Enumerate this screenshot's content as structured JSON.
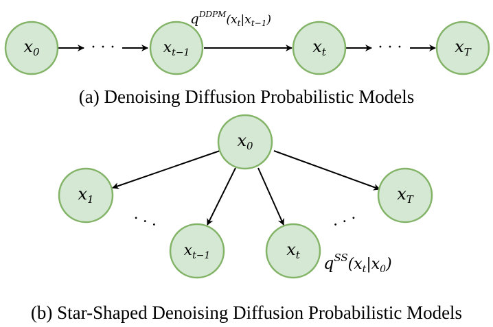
{
  "diagram_a": {
    "caption": "(a) Denoising Diffusion Probabilistic Models",
    "nodes": {
      "x0": {
        "base": "x",
        "sub": "0"
      },
      "xtm1": {
        "base": "x",
        "sub": "t−1"
      },
      "xt": {
        "base": "x",
        "sub": "t"
      },
      "xT": {
        "base": "x",
        "sub": "T"
      }
    },
    "ellipsis_left": "· · ·",
    "ellipsis_right": "· · ·",
    "transition": {
      "base": "q",
      "sup": "DDPM",
      "args_pre": "(x",
      "args_sub1": "t",
      "args_mid": "|x",
      "args_sub2": "t−1",
      "args_post": ")"
    }
  },
  "diagram_b": {
    "caption": "(b) Star-Shaped Denoising Diffusion Probabilistic Models",
    "nodes": {
      "x0": {
        "base": "x",
        "sub": "0"
      },
      "x1": {
        "base": "x",
        "sub": "1"
      },
      "xtm1": {
        "base": "x",
        "sub": "t−1"
      },
      "xt": {
        "base": "x",
        "sub": "t"
      },
      "xT": {
        "base": "x",
        "sub": "T"
      }
    },
    "ellipsis_left": "· · ·",
    "ellipsis_right": "· · ·",
    "transition": {
      "base": "q",
      "sup": "SS",
      "args_pre": "(x",
      "args_sub1": "t",
      "args_mid": "|x",
      "args_sub2": "0",
      "args_post": ")"
    }
  },
  "colors": {
    "node_fill": "#d5e8d4",
    "node_stroke": "#82b366"
  }
}
